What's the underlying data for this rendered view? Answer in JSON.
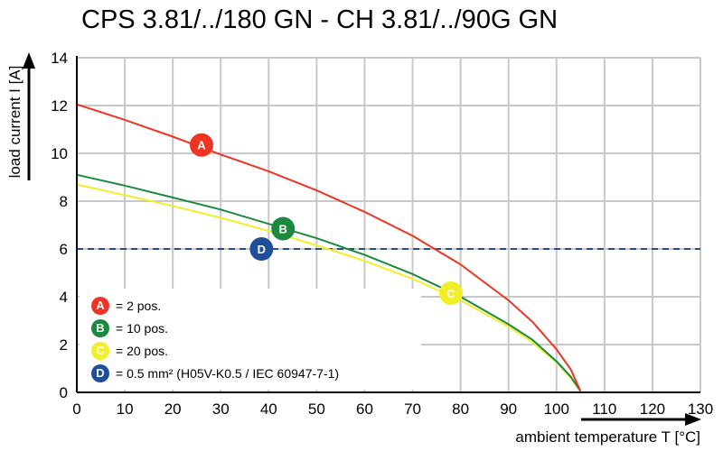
{
  "title": "CPS 3.81/../180 GN - CH 3.81/../90G GN",
  "chart_data": {
    "type": "line",
    "title": "CPS 3.81/../180 GN - CH 3.81/../90G GN",
    "xlabel": "ambient temperature T [°C]",
    "ylabel": "load current I [A]",
    "xlim": [
      0,
      130
    ],
    "ylim": [
      0,
      14
    ],
    "xticks": [
      0,
      10,
      20,
      30,
      40,
      50,
      60,
      70,
      80,
      90,
      100,
      110,
      120,
      130
    ],
    "yticks": [
      0,
      2,
      4,
      6,
      8,
      10,
      12,
      14
    ],
    "grid": true,
    "legend_position": "bottom-left",
    "series": [
      {
        "marker": "A",
        "legend": "= 2 pos.",
        "color": "#ee3524",
        "x": [
          0,
          10,
          20,
          30,
          40,
          50,
          60,
          70,
          80,
          90,
          95,
          100,
          103,
          105
        ],
        "y": [
          12.05,
          11.4,
          10.7,
          9.95,
          9.25,
          8.45,
          7.55,
          6.55,
          5.35,
          3.85,
          2.95,
          1.8,
          0.95,
          0.05
        ]
      },
      {
        "marker": "B",
        "legend": "= 10 pos.",
        "color": "#1b8a3f",
        "x": [
          0,
          10,
          20,
          30,
          40,
          50,
          60,
          70,
          80,
          90,
          95,
          100,
          103,
          105
        ],
        "y": [
          9.1,
          8.65,
          8.15,
          7.65,
          7.05,
          6.45,
          5.75,
          4.95,
          4.0,
          2.85,
          2.2,
          1.3,
          0.65,
          0.05
        ]
      },
      {
        "marker": "C",
        "legend": "= 20 pos.",
        "color": "#f2ee2a",
        "x": [
          0,
          10,
          20,
          30,
          40,
          50,
          60,
          70,
          80,
          90,
          95,
          100,
          103,
          105
        ],
        "y": [
          8.7,
          8.25,
          7.8,
          7.3,
          6.75,
          6.15,
          5.5,
          4.75,
          3.85,
          2.75,
          2.1,
          1.25,
          0.6,
          0.05
        ]
      }
    ],
    "reference_line": {
      "marker": "D",
      "legend": "= 0.5 mm² (H05V-K0.5 / IEC 60947-7-1)",
      "color": "#1f4f9a",
      "y": 6
    },
    "markers": [
      {
        "label": "A",
        "x": 26,
        "y": 10.35,
        "color": "#ee3524"
      },
      {
        "label": "B",
        "x": 43,
        "y": 6.85,
        "color": "#1b8a3f"
      },
      {
        "label": "C",
        "x": 78,
        "y": 4.15,
        "color": "#f2ee2a"
      },
      {
        "label": "D",
        "x": 38.5,
        "y": 6.0,
        "color": "#1f4f9a"
      }
    ]
  }
}
